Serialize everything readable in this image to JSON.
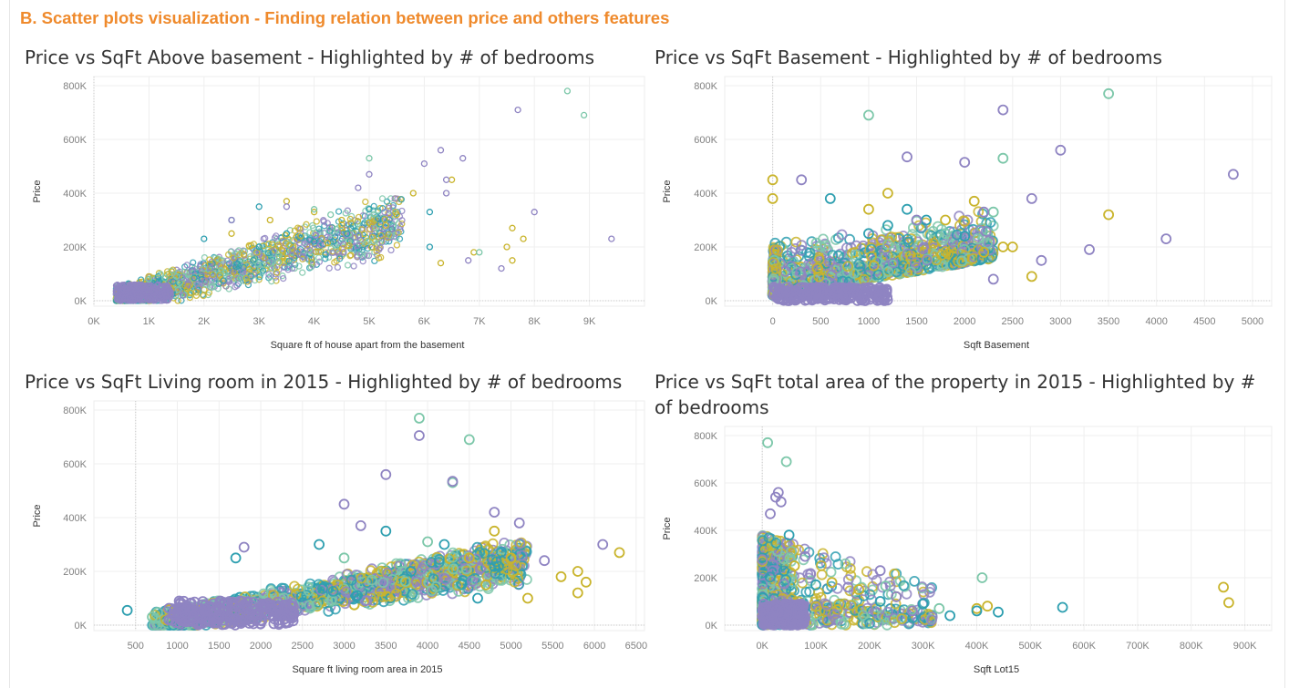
{
  "dashboard_title": "B. Scatter plots visualization - Finding relation between price and others features",
  "colors": {
    "yellow": "#c9b42c",
    "teal": "#2e9fb0",
    "mint": "#7cc7a9",
    "purple": "#8f84c2",
    "title_orange": "#ef8a2c"
  },
  "chart_data": [
    {
      "type": "scatter",
      "title": "Price vs SqFt Above basement - Highlighted by # of bedrooms",
      "xlabel": "Square ft of house apart from the basement",
      "ylabel": "Price",
      "xlim": [
        0,
        10000
      ],
      "ylim": [
        0,
        800000
      ],
      "x_ticks": [
        {
          "v": 0,
          "l": "0K"
        },
        {
          "v": 1000,
          "l": "1K"
        },
        {
          "v": 2000,
          "l": "2K"
        },
        {
          "v": 3000,
          "l": "3K"
        },
        {
          "v": 4000,
          "l": "4K"
        },
        {
          "v": 5000,
          "l": "5K"
        },
        {
          "v": 6000,
          "l": "6K"
        },
        {
          "v": 7000,
          "l": "7K"
        },
        {
          "v": 8000,
          "l": "8K"
        },
        {
          "v": 9000,
          "l": "9K"
        }
      ],
      "y_ticks": [
        {
          "v": 0,
          "l": "0K"
        },
        {
          "v": 200000,
          "l": "200K"
        },
        {
          "v": 400000,
          "l": "400K"
        },
        {
          "v": 600000,
          "l": "600K"
        },
        {
          "v": 800000,
          "l": "800K"
        }
      ],
      "grid": true,
      "series": [
        {
          "color": "yellow",
          "points": [
            [
              3500,
              370000
            ],
            [
              4000,
              330000
            ],
            [
              4500,
              300000
            ],
            [
              5000,
              290000
            ],
            [
              5300,
              280000
            ],
            [
              5500,
              320000
            ],
            [
              5800,
              400000
            ],
            [
              6300,
              140000
            ],
            [
              6900,
              180000
            ],
            [
              7500,
              200000
            ],
            [
              7600,
              150000
            ],
            [
              7600,
              270000
            ],
            [
              7800,
              230000
            ],
            [
              6500,
              450000
            ],
            [
              3200,
              300000
            ],
            [
              2500,
              250000
            ]
          ]
        },
        {
          "color": "teal",
          "points": [
            [
              2000,
              230000
            ],
            [
              2500,
              300000
            ],
            [
              3000,
              350000
            ],
            [
              3500,
              250000
            ],
            [
              4000,
              220000
            ],
            [
              4600,
              250000
            ],
            [
              5000,
              340000
            ],
            [
              6100,
              330000
            ],
            [
              6100,
              200000
            ],
            [
              3000,
              200000
            ]
          ]
        },
        {
          "color": "mint",
          "points": [
            [
              8600,
              780000
            ],
            [
              8900,
              690000
            ],
            [
              5000,
              530000
            ],
            [
              4300,
              320000
            ],
            [
              2000,
              120000
            ],
            [
              1000,
              80000
            ],
            [
              1500,
              90000
            ],
            [
              4000,
              340000
            ],
            [
              7000,
              180000
            ]
          ]
        },
        {
          "color": "purple",
          "points": [
            [
              7700,
              710000
            ],
            [
              6300,
              560000
            ],
            [
              6700,
              530000
            ],
            [
              6000,
              510000
            ],
            [
              5000,
              470000
            ],
            [
              4800,
              420000
            ],
            [
              6400,
              450000
            ],
            [
              6400,
              400000
            ],
            [
              8000,
              330000
            ],
            [
              9400,
              230000
            ],
            [
              7400,
              120000
            ],
            [
              6800,
              150000
            ],
            [
              3500,
              350000
            ],
            [
              2500,
              300000
            ],
            [
              600,
              40000
            ],
            [
              900,
              30000
            ],
            [
              1200,
              50000
            ],
            [
              500,
              20000
            ]
          ]
        }
      ]
    },
    {
      "type": "scatter",
      "title": "Price vs SqFt Basement - Highlighted by # of bedrooms",
      "xlabel": "Sqft Basement",
      "ylabel": "Price",
      "xlim": [
        -500,
        5200
      ],
      "ylim": [
        0,
        800000
      ],
      "x_ticks": [
        {
          "v": 0,
          "l": "0"
        },
        {
          "v": 500,
          "l": "500"
        },
        {
          "v": 1000,
          "l": "1000"
        },
        {
          "v": 1500,
          "l": "1500"
        },
        {
          "v": 2000,
          "l": "2000"
        },
        {
          "v": 2500,
          "l": "2500"
        },
        {
          "v": 3000,
          "l": "3000"
        },
        {
          "v": 3500,
          "l": "3500"
        },
        {
          "v": 4000,
          "l": "4000"
        },
        {
          "v": 4500,
          "l": "4500"
        },
        {
          "v": 5000,
          "l": "5000"
        }
      ],
      "y_ticks": [
        {
          "v": 0,
          "l": "0K"
        },
        {
          "v": 200000,
          "l": "200K"
        },
        {
          "v": 400000,
          "l": "400K"
        },
        {
          "v": 600000,
          "l": "600K"
        },
        {
          "v": 800000,
          "l": "800K"
        }
      ],
      "grid": true,
      "series": [
        {
          "color": "yellow",
          "points": [
            [
              0,
              450000
            ],
            [
              0,
              380000
            ],
            [
              3500,
              320000
            ],
            [
              2400,
              200000
            ],
            [
              2100,
              370000
            ],
            [
              1800,
              300000
            ],
            [
              1200,
              400000
            ],
            [
              1000,
              340000
            ],
            [
              2700,
              90000
            ],
            [
              2500,
              200000
            ],
            [
              2200,
              180000
            ]
          ]
        },
        {
          "color": "teal",
          "points": [
            [
              600,
              380000
            ],
            [
              1400,
              340000
            ],
            [
              1600,
              300000
            ],
            [
              1000,
              250000
            ],
            [
              2000,
              240000
            ],
            [
              1200,
              280000
            ]
          ]
        },
        {
          "color": "mint",
          "points": [
            [
              3500,
              770000
            ],
            [
              1000,
              690000
            ],
            [
              2400,
              530000
            ],
            [
              2300,
              330000
            ],
            [
              1800,
              250000
            ]
          ]
        },
        {
          "color": "purple",
          "points": [
            [
              2400,
              710000
            ],
            [
              3000,
              560000
            ],
            [
              1400,
              535000
            ],
            [
              2000,
              515000
            ],
            [
              4800,
              470000
            ],
            [
              300,
              450000
            ],
            [
              2700,
              380000
            ],
            [
              2200,
              330000
            ],
            [
              4100,
              230000
            ],
            [
              3300,
              190000
            ],
            [
              2800,
              150000
            ],
            [
              2300,
              80000
            ],
            [
              1500,
              300000
            ]
          ]
        }
      ]
    },
    {
      "type": "scatter",
      "title": "Price vs SqFt  Living room  in 2015 - Highlighted by # of bedrooms",
      "xlabel": "Square ft living room area in 2015",
      "ylabel": "Price",
      "xlim": [
        0,
        6600
      ],
      "ylim": [
        0,
        800000
      ],
      "x_ticks": [
        {
          "v": 500,
          "l": "500"
        },
        {
          "v": 1000,
          "l": "1000"
        },
        {
          "v": 1500,
          "l": "1500"
        },
        {
          "v": 2000,
          "l": "2000"
        },
        {
          "v": 2500,
          "l": "2500"
        },
        {
          "v": 3000,
          "l": "3000"
        },
        {
          "v": 3500,
          "l": "3500"
        },
        {
          "v": 4000,
          "l": "4000"
        },
        {
          "v": 4500,
          "l": "4500"
        },
        {
          "v": 5000,
          "l": "5000"
        },
        {
          "v": 5500,
          "l": "5500"
        },
        {
          "v": 6000,
          "l": "6000"
        },
        {
          "v": 6500,
          "l": "6500"
        }
      ],
      "y_ticks": [
        {
          "v": 0,
          "l": "0K"
        },
        {
          "v": 200000,
          "l": "200K"
        },
        {
          "v": 400000,
          "l": "400K"
        },
        {
          "v": 600000,
          "l": "600K"
        },
        {
          "v": 800000,
          "l": "800K"
        }
      ],
      "grid": true,
      "series": [
        {
          "color": "yellow",
          "points": [
            [
              6300,
              270000
            ],
            [
              5800,
              200000
            ],
            [
              5600,
              180000
            ],
            [
              5900,
              160000
            ],
            [
              5800,
              120000
            ],
            [
              5000,
              250000
            ],
            [
              4800,
              350000
            ],
            [
              4500,
              250000
            ],
            [
              4700,
              150000
            ],
            [
              5200,
              100000
            ]
          ]
        },
        {
          "color": "teal",
          "points": [
            [
              400,
              55000
            ],
            [
              1700,
              250000
            ],
            [
              2700,
              300000
            ],
            [
              3500,
              350000
            ],
            [
              4200,
              300000
            ],
            [
              4600,
              100000
            ],
            [
              3800,
              200000
            ]
          ]
        },
        {
          "color": "mint",
          "points": [
            [
              3900,
              770000
            ],
            [
              4500,
              690000
            ],
            [
              4300,
              530000
            ],
            [
              4000,
              310000
            ],
            [
              3000,
              250000
            ],
            [
              700,
              30000
            ]
          ]
        },
        {
          "color": "purple",
          "points": [
            [
              3900,
              705000
            ],
            [
              3500,
              560000
            ],
            [
              4300,
              535000
            ],
            [
              4800,
              420000
            ],
            [
              5100,
              380000
            ],
            [
              3000,
              450000
            ],
            [
              3200,
              370000
            ],
            [
              5400,
              240000
            ],
            [
              6100,
              300000
            ],
            [
              1800,
              290000
            ],
            [
              1200,
              40000
            ],
            [
              1500,
              30000
            ]
          ]
        }
      ]
    },
    {
      "type": "scatter",
      "title": "Price vs SqFt total area of the property in 2015 - Highlighted by # of bedrooms",
      "xlabel": "Sqft Lot15",
      "ylabel": "Price",
      "xlim": [
        -70000,
        950000
      ],
      "ylim": [
        0,
        800000
      ],
      "x_ticks": [
        {
          "v": 0,
          "l": "0K"
        },
        {
          "v": 100000,
          "l": "100K"
        },
        {
          "v": 200000,
          "l": "200K"
        },
        {
          "v": 300000,
          "l": "300K"
        },
        {
          "v": 400000,
          "l": "400K"
        },
        {
          "v": 500000,
          "l": "500K"
        },
        {
          "v": 600000,
          "l": "600K"
        },
        {
          "v": 700000,
          "l": "700K"
        },
        {
          "v": 800000,
          "l": "800K"
        },
        {
          "v": 900000,
          "l": "900K"
        }
      ],
      "y_ticks": [
        {
          "v": 0,
          "l": "0K"
        },
        {
          "v": 200000,
          "l": "200K"
        },
        {
          "v": 400000,
          "l": "400K"
        },
        {
          "v": 600000,
          "l": "600K"
        },
        {
          "v": 800000,
          "l": "800K"
        }
      ],
      "grid": true,
      "series": [
        {
          "color": "yellow",
          "points": [
            [
              860000,
              160000
            ],
            [
              870000,
              95000
            ],
            [
              420000,
              80000
            ],
            [
              400000,
              70000
            ],
            [
              250000,
              120000
            ],
            [
              180000,
              150000
            ],
            [
              130000,
              180000
            ],
            [
              60000,
              250000
            ]
          ]
        },
        {
          "color": "teal",
          "points": [
            [
              560000,
              75000
            ],
            [
              440000,
              55000
            ],
            [
              400000,
              60000
            ],
            [
              350000,
              40000
            ],
            [
              50000,
              380000
            ],
            [
              100000,
              170000
            ],
            [
              220000,
              100000
            ],
            [
              300000,
              90000
            ]
          ]
        },
        {
          "color": "mint",
          "points": [
            [
              10000,
              770000
            ],
            [
              45000,
              690000
            ],
            [
              230000,
              165000
            ],
            [
              410000,
              200000
            ],
            [
              330000,
              70000
            ]
          ]
        },
        {
          "color": "purple",
          "points": [
            [
              30000,
              560000
            ],
            [
              25000,
              540000
            ],
            [
              35000,
              520000
            ],
            [
              15000,
              470000
            ],
            [
              80000,
              290000
            ],
            [
              160000,
              160000
            ],
            [
              250000,
              120000
            ],
            [
              220000,
              230000
            ],
            [
              280000,
              60000
            ],
            [
              40000,
              60000
            ]
          ]
        }
      ]
    }
  ]
}
